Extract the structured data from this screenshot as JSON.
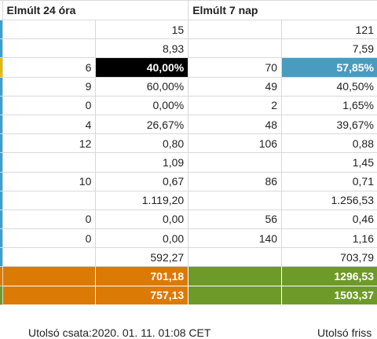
{
  "header": {
    "col_24h": "Elmúlt 24 óra",
    "col_7d": "Elmúlt 7 nap"
  },
  "colors": {
    "black_cell": "#000000",
    "blue_cell": "#4a9bc0",
    "orange_row": "#dc7a06",
    "green_row": "#6e9a29",
    "edge_blue": "#39a0d0",
    "edge_yellow": "#e5b800",
    "edge_orange": "#dc7a06",
    "edge_green": "#6e9a29"
  },
  "rows": [
    {
      "a": "",
      "b": "15",
      "c": "",
      "d": "121",
      "edge": "blue"
    },
    {
      "a": "",
      "b": "8,93",
      "c": "",
      "d": "7,59",
      "edge": "blue"
    },
    {
      "a": "6",
      "b": "40,00%",
      "c": "70",
      "d": "57,85%",
      "edge": "yellow",
      "b_bg": "black",
      "d_bg": "blue"
    },
    {
      "a": "9",
      "b": "60,00%",
      "c": "49",
      "d": "40,50%",
      "edge": "blue"
    },
    {
      "a": "0",
      "b": "0,00%",
      "c": "2",
      "d": "1,65%",
      "edge": "blue"
    },
    {
      "a": "4",
      "b": "26,67%",
      "c": "48",
      "d": "39,67%",
      "edge": "blue"
    },
    {
      "a": "12",
      "b": "0,80",
      "c": "106",
      "d": "0,88",
      "edge": "blue"
    },
    {
      "a": "",
      "b": "1,09",
      "c": "",
      "d": "1,45",
      "edge": "blue"
    },
    {
      "a": "10",
      "b": "0,67",
      "c": "86",
      "d": "0,71",
      "edge": "blue"
    },
    {
      "a": "",
      "b": "1.119,20",
      "c": "",
      "d": "1.256,53",
      "edge": "blue"
    },
    {
      "a": "0",
      "b": "0,00",
      "c": "56",
      "d": "0,46",
      "edge": "blue"
    },
    {
      "a": "0",
      "b": "0,00",
      "c": "140",
      "d": "1,16",
      "edge": "blue"
    },
    {
      "a": "",
      "b": "592,27",
      "c": "",
      "d": "703,79",
      "edge": "blue"
    },
    {
      "a": "",
      "b": "701,18",
      "c": "",
      "d": "1296,53",
      "edge": "orange",
      "full": true
    },
    {
      "a": "",
      "b": "757,13",
      "c": "",
      "d": "1503,37",
      "edge": "green",
      "full": true
    }
  ],
  "footer": {
    "left": "Utolsó csata:2020. 01. 11. 01:08 CET",
    "right": "Utolsó friss"
  }
}
